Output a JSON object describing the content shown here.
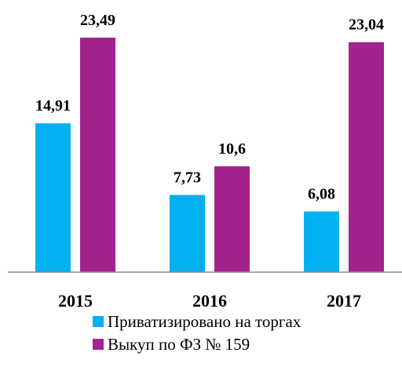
{
  "chart_data": {
    "type": "bar",
    "categories": [
      "2015",
      "2016",
      "2017"
    ],
    "series": [
      {
        "name": "Приватизировано на торгах",
        "color": "#00b0f0",
        "values": [
          14.91,
          7.73,
          6.08
        ],
        "value_labels": [
          "14,91",
          "7,73",
          "6,08"
        ]
      },
      {
        "name": "Выкуп по ФЗ № 159",
        "color": "#a3228e",
        "values": [
          23.49,
          10.6,
          23.04
        ],
        "value_labels": [
          "23,49",
          "10,6",
          "23,04"
        ]
      }
    ],
    "legend": "bottom"
  }
}
